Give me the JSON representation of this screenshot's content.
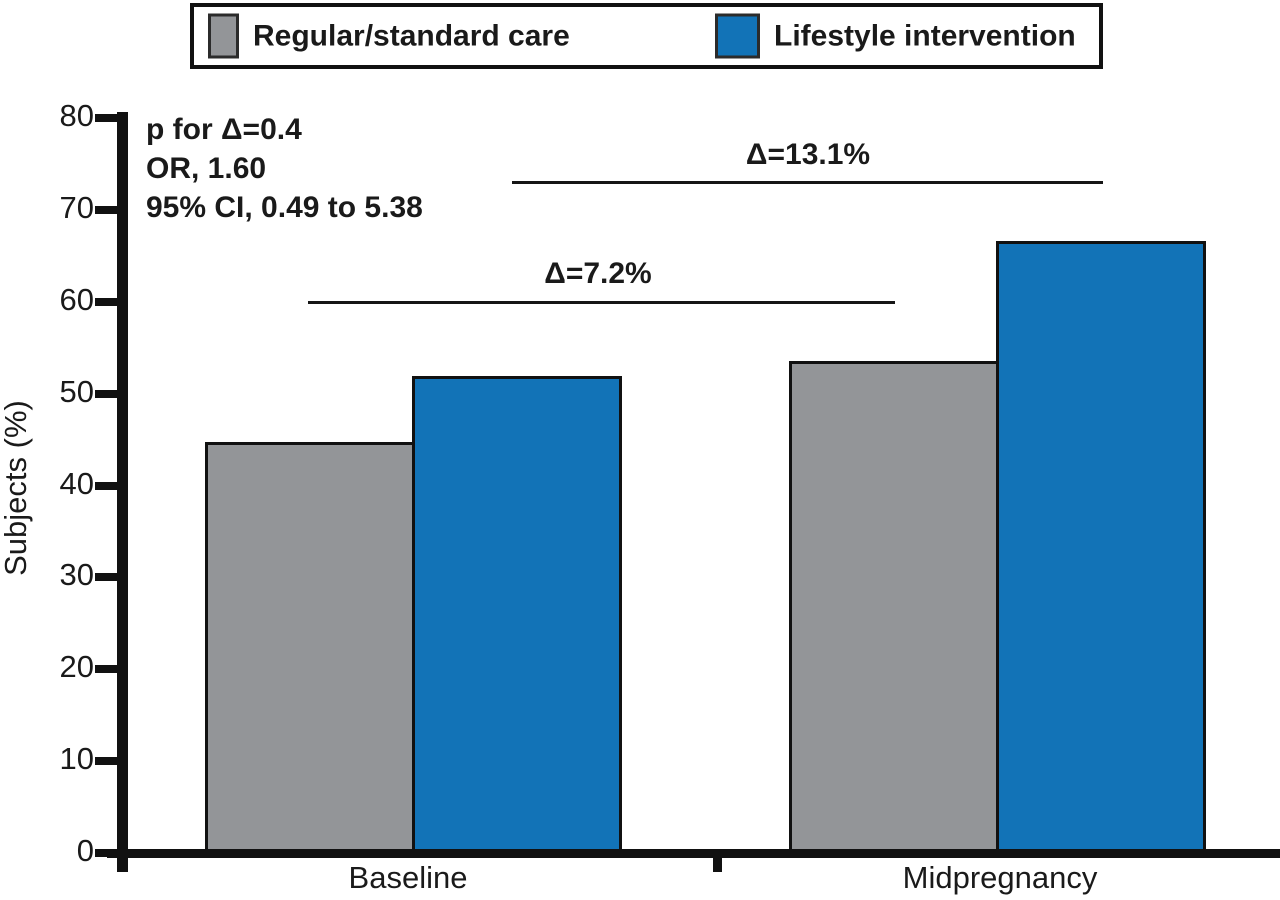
{
  "legend": {
    "items": [
      {
        "label": "Regular/standard care",
        "color": "#939598"
      },
      {
        "label": "Lifestyle intervention",
        "color": "#1273b7"
      }
    ]
  },
  "annotations": {
    "stats_lines": [
      "p for Δ=0.4",
      "OR, 1.60",
      "95% CI, 0.49 to 5.38"
    ]
  },
  "chart_data": {
    "type": "bar",
    "title": "",
    "xlabel": "",
    "ylabel": "Subjects (%)",
    "categories": [
      "Baseline",
      "Midpregnancy"
    ],
    "series": [
      {
        "name": "Regular/standard care",
        "color": "#939598",
        "values": [
          44.7,
          53.5
        ]
      },
      {
        "name": "Lifestyle intervention",
        "color": "#1273b7",
        "values": [
          51.9,
          66.6
        ]
      }
    ],
    "ylim": [
      0,
      80
    ],
    "yticks": [
      0,
      10,
      20,
      30,
      40,
      50,
      60,
      70,
      80
    ],
    "grid": false,
    "legend_position": "top",
    "bar_outline_color": "#111111",
    "comparisons": [
      {
        "label": "Δ=7.2%",
        "between": [
          "Baseline",
          "Midpregnancy"
        ],
        "series": "Regular/standard care vs Lifestyle intervention at Baseline",
        "delta_percent": 7.2,
        "line_y_value": 60
      },
      {
        "label": "Δ=13.1%",
        "between": [
          "Baseline",
          "Midpregnancy"
        ],
        "series": "Regular/standard care vs Lifestyle intervention at Midpregnancy",
        "delta_percent": 13.1,
        "line_y_value": 72.7
      }
    ],
    "stats_annotation": {
      "p_for_delta": "0.4",
      "odds_ratio": "1.60",
      "ci_95": "0.49 to 5.38"
    }
  }
}
